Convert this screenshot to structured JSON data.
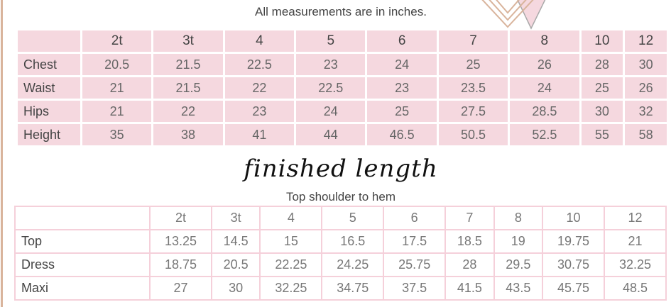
{
  "note": "All measurements are in inches.",
  "body_table": {
    "headers": [
      "2t",
      "3t",
      "4",
      "5",
      "6",
      "7",
      "8",
      "10",
      "12"
    ],
    "rows": [
      {
        "label": "Chest",
        "values": [
          "20.5",
          "21.5",
          "22.5",
          "23",
          "24",
          "25",
          "26",
          "28",
          "30"
        ]
      },
      {
        "label": "Waist",
        "values": [
          "21",
          "21.5",
          "22",
          "22.5",
          "23",
          "23.5",
          "24",
          "25",
          "26"
        ]
      },
      {
        "label": "Hips",
        "values": [
          "21",
          "22",
          "23",
          "24",
          "25",
          "27.5",
          "28.5",
          "30",
          "32"
        ]
      },
      {
        "label": "Height",
        "values": [
          "35",
          "38",
          "41",
          "44",
          "46.5",
          "50.5",
          "52.5",
          "55",
          "58"
        ]
      }
    ]
  },
  "finished": {
    "title": "finished length",
    "subtitle": "Top shoulder to hem",
    "headers": [
      "2t",
      "3t",
      "4",
      "5",
      "6",
      "7",
      "8",
      "10",
      "12"
    ],
    "rows": [
      {
        "label": "Top",
        "values": [
          "13.25",
          "14.5",
          "15",
          "16.5",
          "17.5",
          "18.5",
          "19",
          "19.75",
          "21"
        ]
      },
      {
        "label": "Dress",
        "values": [
          "18.75",
          "20.5",
          "22.25",
          "24.25",
          "25.75",
          "28",
          "29.5",
          "30.75",
          "32.25"
        ]
      },
      {
        "label": "Maxi",
        "values": [
          "27",
          "30",
          "32.25",
          "34.75",
          "37.5",
          "41.5",
          "43.5",
          "45.75",
          "48.5"
        ]
      }
    ]
  },
  "colors": {
    "pink": "#f5d8df",
    "tan": "#d9b49c",
    "grey": "#a9a9a9"
  }
}
